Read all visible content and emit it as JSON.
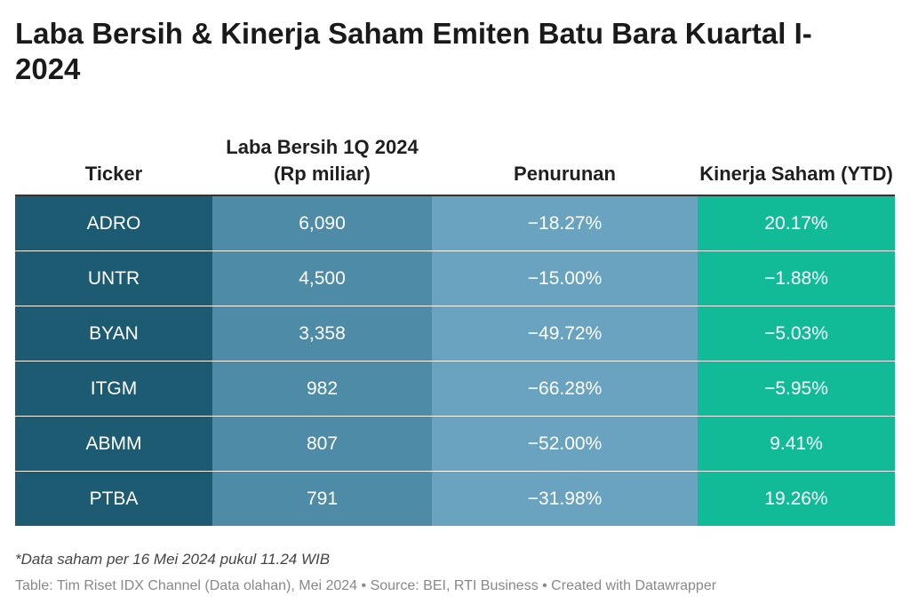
{
  "chart_data": {
    "type": "table",
    "title": "Laba Bersih & Kinerja Saham Emiten Batu Bara Kuartal I-2024",
    "columns": [
      "Ticker",
      "Laba Bersih 1Q 2024 (Rp miliar)",
      "Penurunan",
      "Kinerja Saham (YTD)"
    ],
    "rows": [
      {
        "ticker": "ADRO",
        "laba": "6,090",
        "penurunan": "−18.27%",
        "kinerja": "20.17%"
      },
      {
        "ticker": "UNTR",
        "laba": "4,500",
        "penurunan": "−15.00%",
        "kinerja": "−1.88%"
      },
      {
        "ticker": "BYAN",
        "laba": "3,358",
        "penurunan": "−49.72%",
        "kinerja": "−5.03%"
      },
      {
        "ticker": "ITGM",
        "laba": "982",
        "penurunan": "−66.28%",
        "kinerja": "−5.95%"
      },
      {
        "ticker": "ABMM",
        "laba": "807",
        "penurunan": "−52.00%",
        "kinerja": "9.41%"
      },
      {
        "ticker": "PTBA",
        "laba": "791",
        "penurunan": "−31.98%",
        "kinerja": "19.26%"
      }
    ],
    "values": {
      "laba_bersih_rp_miliar": [
        6090,
        4500,
        3358,
        982,
        807,
        791
      ],
      "penurunan_pct": [
        -18.27,
        -15.0,
        -49.72,
        -66.28,
        -52.0,
        -31.98
      ],
      "kinerja_saham_ytd_pct": [
        20.17,
        -1.88,
        -5.03,
        -5.95,
        9.41,
        19.26
      ]
    },
    "column_colors": [
      "#1d5b73",
      "#4d8ba6",
      "#69a3bf",
      "#11bb98"
    ]
  },
  "footer": {
    "note": "*Data saham per 16 Mei 2024 pukul 11.24 WIB",
    "source": "Table: Tim Riset IDX Channel (Data olahan), Mei 2024 • Source: BEI, RTI Business • Created with Datawrapper"
  }
}
